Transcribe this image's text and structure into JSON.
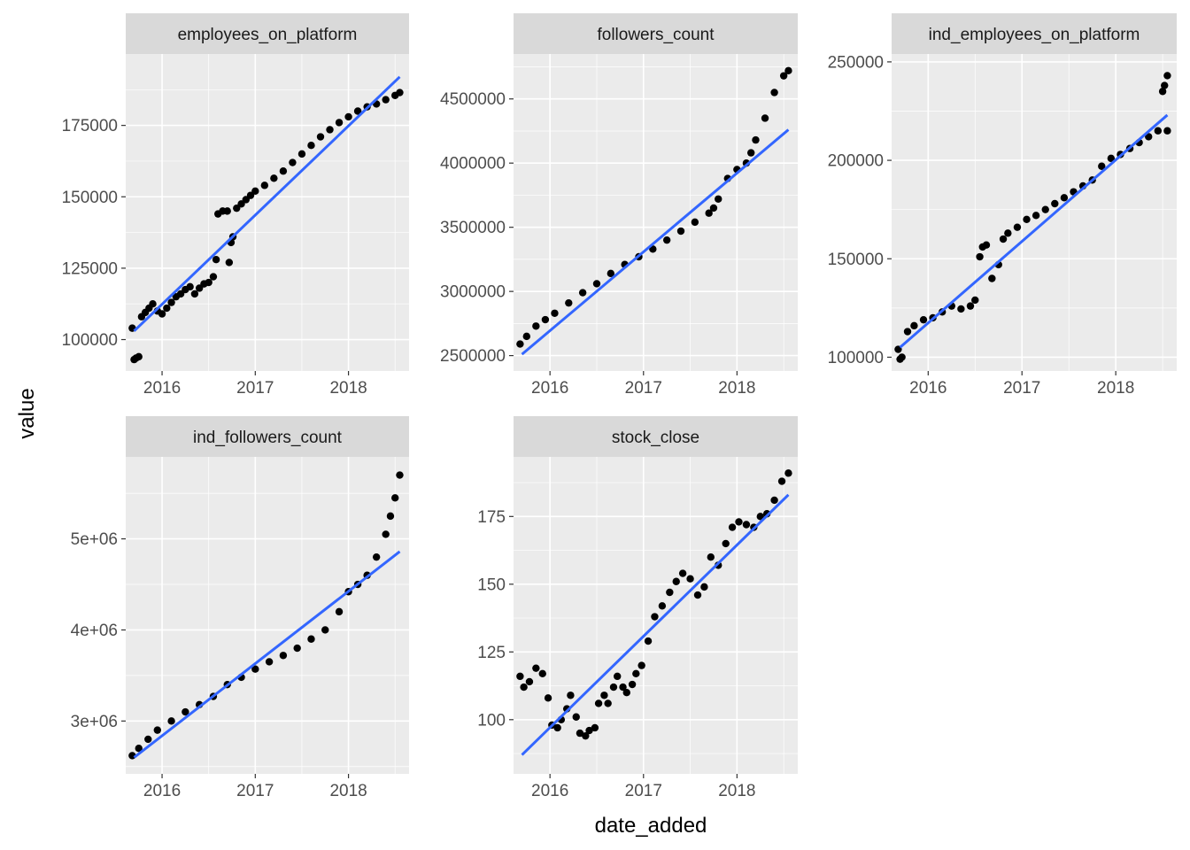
{
  "x_axis_title": "date_added",
  "y_axis_title": "value",
  "colors": {
    "panel_bg": "#ebebeb",
    "strip_bg": "#d9d9d9",
    "grid": "#ffffff",
    "points": "#000000",
    "trend_line": "#3366ff"
  },
  "chart_data": [
    {
      "type": "scatter",
      "title": "employees_on_platform",
      "x_ticks": [
        "2016",
        "2017",
        "2018"
      ],
      "y_ticks": [
        "100000",
        "125000",
        "150000",
        "175000"
      ],
      "y_tick_values": [
        100000,
        125000,
        150000,
        175000
      ],
      "xlim": [
        2015.61,
        2018.65
      ],
      "ylim": [
        89000,
        200000
      ],
      "trend": [
        [
          2015.7,
          103000
        ],
        [
          2018.55,
          192000
        ]
      ],
      "series": [
        {
          "x": [
            2015.68,
            2015.7,
            2015.72,
            2015.75,
            2015.78,
            2015.82,
            2015.86,
            2015.9,
            2015.95,
            2016.0,
            2016.05,
            2016.1,
            2016.15,
            2016.2,
            2016.25,
            2016.3,
            2016.35,
            2016.4,
            2016.45,
            2016.5,
            2016.55,
            2016.58,
            2016.6,
            2016.65,
            2016.7,
            2016.72,
            2016.74,
            2016.76,
            2016.8,
            2016.85,
            2016.9,
            2016.95,
            2017.0,
            2017.1,
            2017.2,
            2017.3,
            2017.4,
            2017.5,
            2017.6,
            2017.7,
            2017.8,
            2017.9,
            2018.0,
            2018.1,
            2018.2,
            2018.3,
            2018.4,
            2018.5,
            2018.55
          ],
          "y": [
            104000,
            93000,
            93500,
            94000,
            108000,
            109500,
            111000,
            112500,
            110000,
            109000,
            111000,
            113000,
            115000,
            116000,
            117500,
            118500,
            116000,
            118000,
            119500,
            120000,
            122000,
            128000,
            144000,
            145000,
            145000,
            127000,
            134000,
            136000,
            146000,
            147500,
            149000,
            150500,
            152000,
            154000,
            156500,
            159000,
            162000,
            165000,
            168000,
            171000,
            173500,
            176000,
            178000,
            180000,
            181500,
            182500,
            184000,
            185500,
            186500
          ]
        }
      ]
    },
    {
      "type": "scatter",
      "title": "followers_count",
      "x_ticks": [
        "2016",
        "2017",
        "2018"
      ],
      "y_ticks": [
        "2500000",
        "3000000",
        "3500000",
        "4000000",
        "4500000"
      ],
      "y_tick_values": [
        2500000,
        3000000,
        3500000,
        4000000,
        4500000
      ],
      "xlim": [
        2015.61,
        2018.65
      ],
      "ylim": [
        2380000,
        4850000
      ],
      "trend": [
        [
          2015.7,
          2510000
        ],
        [
          2018.55,
          4260000
        ]
      ],
      "series": [
        {
          "x": [
            2015.68,
            2015.75,
            2015.85,
            2015.95,
            2016.05,
            2016.2,
            2016.35,
            2016.5,
            2016.65,
            2016.8,
            2016.95,
            2017.1,
            2017.25,
            2017.4,
            2017.55,
            2017.7,
            2017.75,
            2017.8,
            2017.9,
            2018.0,
            2018.1,
            2018.15,
            2018.2,
            2018.3,
            2018.4,
            2018.5,
            2018.55
          ],
          "y": [
            2590000,
            2650000,
            2730000,
            2780000,
            2830000,
            2910000,
            2990000,
            3060000,
            3140000,
            3210000,
            3270000,
            3330000,
            3400000,
            3470000,
            3540000,
            3610000,
            3650000,
            3720000,
            3880000,
            3950000,
            4000000,
            4080000,
            4180000,
            4350000,
            4550000,
            4680000,
            4720000
          ]
        }
      ]
    },
    {
      "type": "scatter",
      "title": "ind_employees_on_platform",
      "x_ticks": [
        "2016",
        "2017",
        "2018"
      ],
      "y_ticks": [
        "100000",
        "150000",
        "200000",
        "250000"
      ],
      "y_tick_values": [
        100000,
        150000,
        200000,
        250000
      ],
      "xlim": [
        2015.61,
        2018.65
      ],
      "ylim": [
        93000,
        254000
      ],
      "trend": [
        [
          2015.7,
          105000
        ],
        [
          2018.55,
          223000
        ]
      ],
      "series": [
        {
          "x": [
            2015.68,
            2015.7,
            2015.72,
            2015.78,
            2015.85,
            2015.95,
            2016.05,
            2016.15,
            2016.25,
            2016.35,
            2016.45,
            2016.5,
            2016.55,
            2016.58,
            2016.62,
            2016.68,
            2016.75,
            2016.8,
            2016.85,
            2016.95,
            2017.05,
            2017.15,
            2017.25,
            2017.35,
            2017.45,
            2017.55,
            2017.65,
            2017.75,
            2017.85,
            2017.95,
            2018.05,
            2018.15,
            2018.25,
            2018.35,
            2018.45,
            2018.5,
            2018.52,
            2018.55,
            2018.55
          ],
          "y": [
            104000,
            99000,
            100000,
            113000,
            116000,
            119000,
            120000,
            123000,
            126000,
            124500,
            126000,
            129000,
            151000,
            156000,
            157000,
            140000,
            147000,
            160000,
            163000,
            166000,
            170000,
            172000,
            175000,
            178000,
            181000,
            184000,
            187000,
            190000,
            197000,
            201000,
            203000,
            206000,
            209000,
            212000,
            215000,
            235000,
            238000,
            243000,
            215000
          ]
        }
      ]
    },
    {
      "type": "scatter",
      "title": "ind_followers_count",
      "x_ticks": [
        "2016",
        "2017",
        "2018"
      ],
      "y_ticks": [
        "3e+06",
        "4e+06",
        "5e+06"
      ],
      "y_tick_values": [
        3000000,
        4000000,
        5000000
      ],
      "xlim": [
        2015.61,
        2018.65
      ],
      "ylim": [
        2420000,
        5900000
      ],
      "trend": [
        [
          2015.7,
          2600000
        ],
        [
          2018.55,
          4860000
        ]
      ],
      "series": [
        {
          "x": [
            2015.68,
            2015.75,
            2015.85,
            2015.95,
            2016.1,
            2016.25,
            2016.4,
            2016.55,
            2016.7,
            2016.85,
            2017.0,
            2017.15,
            2017.3,
            2017.45,
            2017.6,
            2017.75,
            2017.9,
            2018.0,
            2018.1,
            2018.2,
            2018.3,
            2018.4,
            2018.45,
            2018.5,
            2018.55
          ],
          "y": [
            2620000,
            2700000,
            2800000,
            2900000,
            3000000,
            3100000,
            3180000,
            3270000,
            3400000,
            3480000,
            3570000,
            3650000,
            3720000,
            3800000,
            3900000,
            4000000,
            4200000,
            4420000,
            4500000,
            4600000,
            4800000,
            5050000,
            5250000,
            5450000,
            5700000
          ]
        }
      ]
    },
    {
      "type": "scatter",
      "title": "stock_close",
      "x_ticks": [
        "2016",
        "2017",
        "2018"
      ],
      "y_ticks": [
        "100",
        "125",
        "150",
        "175"
      ],
      "y_tick_values": [
        100,
        125,
        150,
        175
      ],
      "xlim": [
        2015.61,
        2018.65
      ],
      "ylim": [
        80,
        197
      ],
      "trend": [
        [
          2015.7,
          87
        ],
        [
          2018.55,
          183
        ]
      ],
      "series": [
        {
          "x": [
            2015.68,
            2015.72,
            2015.78,
            2015.85,
            2015.92,
            2015.98,
            2016.02,
            2016.08,
            2016.12,
            2016.18,
            2016.22,
            2016.28,
            2016.32,
            2016.38,
            2016.42,
            2016.48,
            2016.52,
            2016.58,
            2016.62,
            2016.68,
            2016.72,
            2016.78,
            2016.82,
            2016.88,
            2016.92,
            2016.98,
            2017.05,
            2017.12,
            2017.2,
            2017.28,
            2017.35,
            2017.42,
            2017.5,
            2017.58,
            2017.65,
            2017.72,
            2017.8,
            2017.88,
            2017.95,
            2018.02,
            2018.1,
            2018.18,
            2018.25,
            2018.32,
            2018.4,
            2018.48,
            2018.55
          ],
          "y": [
            116,
            112,
            114,
            119,
            117,
            108,
            98,
            97,
            100,
            104,
            109,
            101,
            95,
            94,
            96,
            97,
            106,
            109,
            106,
            112,
            116,
            112,
            110,
            113,
            117,
            120,
            129,
            138,
            142,
            147,
            151,
            154,
            152,
            146,
            149,
            160,
            157,
            165,
            171,
            173,
            172,
            171,
            175,
            176,
            181,
            188,
            191
          ]
        }
      ]
    }
  ]
}
